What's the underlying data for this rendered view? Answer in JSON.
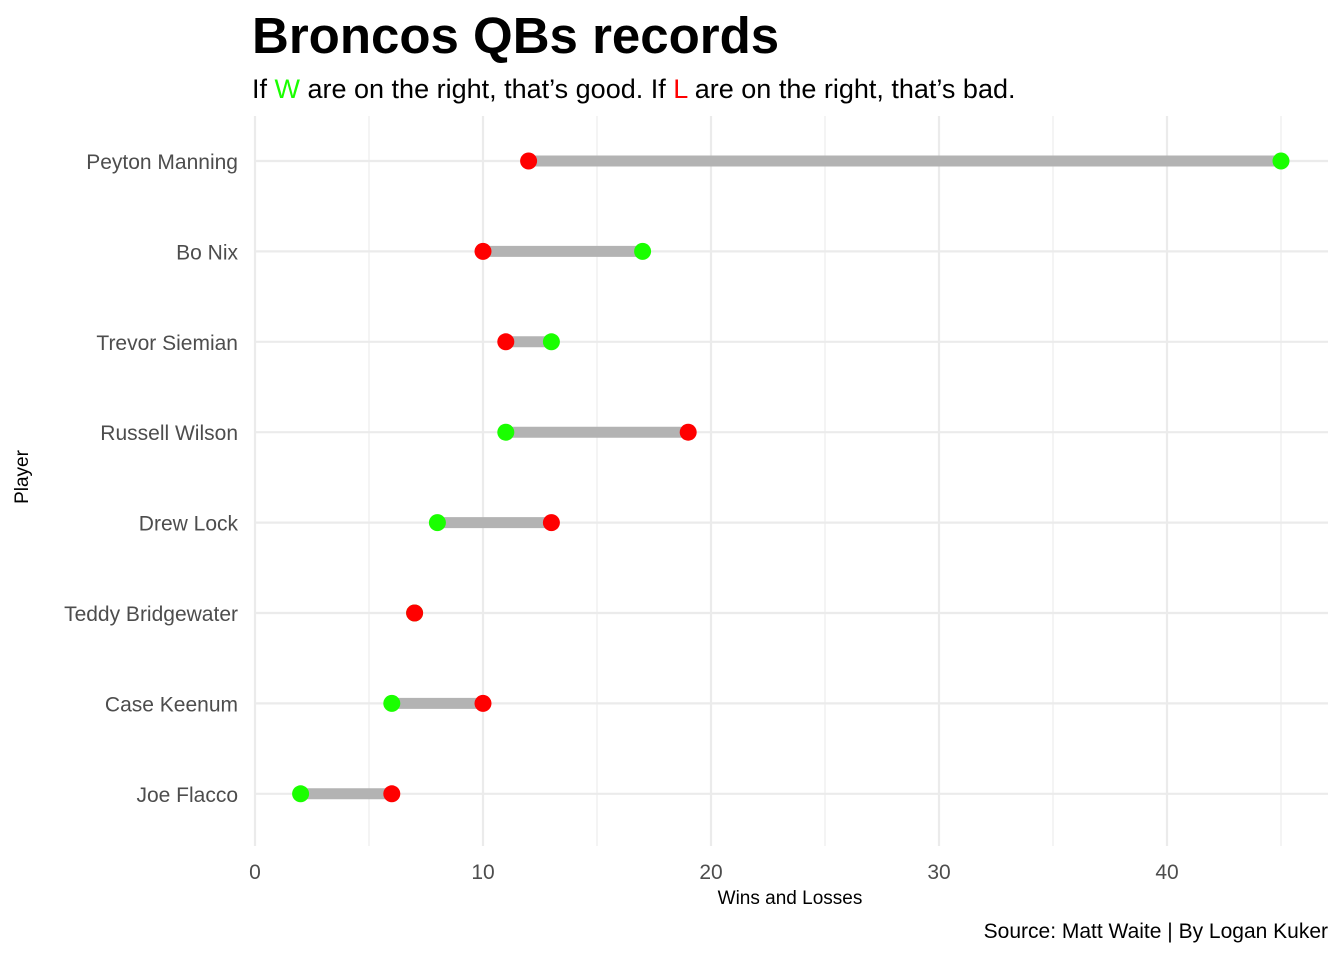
{
  "chart_data": {
    "type": "dumbbell",
    "title": "Broncos QBs records",
    "subtitle": {
      "before_w": "If ",
      "w": "W",
      "middle": " are on the right, that’s good. If ",
      "l": "L",
      "after_l": " are on the right, that’s bad."
    },
    "caption": "Source: Matt Waite | By Logan Kuker",
    "xlabel": "Wins and Losses",
    "ylabel": "Player",
    "xlim": [
      0,
      47
    ],
    "x_ticks": [
      0,
      10,
      20,
      30,
      40
    ],
    "grid": true,
    "colors": {
      "wins": "#1aff00",
      "losses": "#ff0000",
      "segment": "#b3b3b3",
      "grid": "#ebebeb"
    },
    "series": [
      {
        "key": "wins"
      },
      {
        "key": "losses"
      }
    ],
    "players": [
      {
        "name": "Peyton Manning",
        "wins": 45,
        "losses": 12
      },
      {
        "name": "Bo Nix",
        "wins": 17,
        "losses": 10
      },
      {
        "name": "Trevor Siemian",
        "wins": 13,
        "losses": 11
      },
      {
        "name": "Russell Wilson",
        "wins": 11,
        "losses": 19
      },
      {
        "name": "Drew Lock",
        "wins": 8,
        "losses": 13
      },
      {
        "name": "Teddy Bridgewater",
        "wins": 7,
        "losses": 7
      },
      {
        "name": "Case Keenum",
        "wins": 6,
        "losses": 10
      },
      {
        "name": "Joe Flacco",
        "wins": 2,
        "losses": 6
      }
    ]
  }
}
